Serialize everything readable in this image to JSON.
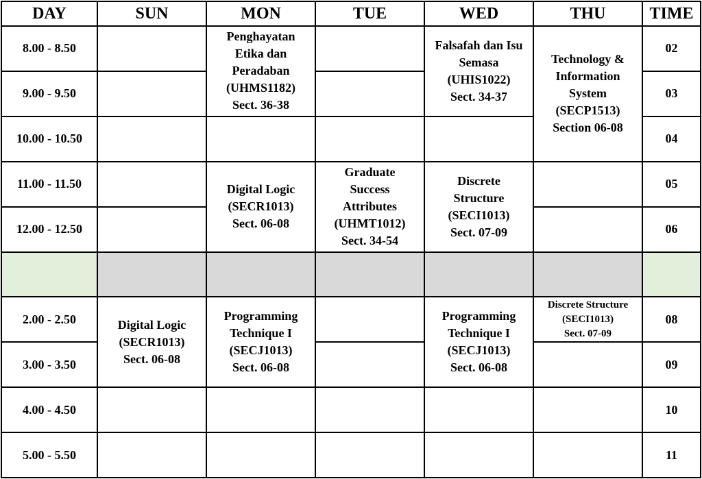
{
  "headers": {
    "day": "DAY",
    "sun": "SUN",
    "mon": "MON",
    "tue": "TUE",
    "wed": "WED",
    "thu": "THU",
    "time": "TIME"
  },
  "times": [
    "8.00 - 8.50",
    "9.00 - 9.50",
    "10.00 - 10.50",
    "11.00 - 11.50",
    "12.00 - 12.50",
    "",
    "2.00 - 2.50",
    "3.00 - 3.50",
    "4.00 - 4.50",
    "5.00 - 5.50"
  ],
  "slots": [
    "02",
    "03",
    "04",
    "05",
    "06",
    "",
    "08",
    "09",
    "10",
    "11"
  ],
  "classes": {
    "mon_pep": "Penghayatan\nEtika dan\nPeradaban\n(UHMS1182)\nSect. 36-38",
    "wed_fal": "Falsafah dan Isu\nSemasa\n(UHIS1022)\nSect. 34-37",
    "thu_tis": "Technology &\nInformation\nSystem\n(SECP1513)\nSection 06-08",
    "mon_dl": "Digital Logic\n(SECR1013)\nSect. 06-08",
    "tue_gsa": "Graduate\nSuccess\nAttributes\n(UHMT1012)\nSect. 34-54",
    "wed_ds": "Discrete\nStructure\n(SECI1013)\nSect. 07-09",
    "sun_dl": "Digital Logic\n(SECR1013)\nSect. 06-08",
    "mon_pt": "Programming\nTechnique I\n(SECJ1013)\nSect. 06-08",
    "wed_pt": "Programming\nTechnique I\n(SECJ1013)\nSect. 06-08",
    "thu_ds": "Discrete Structure\n(SECI1013)\nSect. 07-09"
  },
  "colors": {
    "break": "#d9d9d9",
    "break_edge": "#e2efda"
  }
}
